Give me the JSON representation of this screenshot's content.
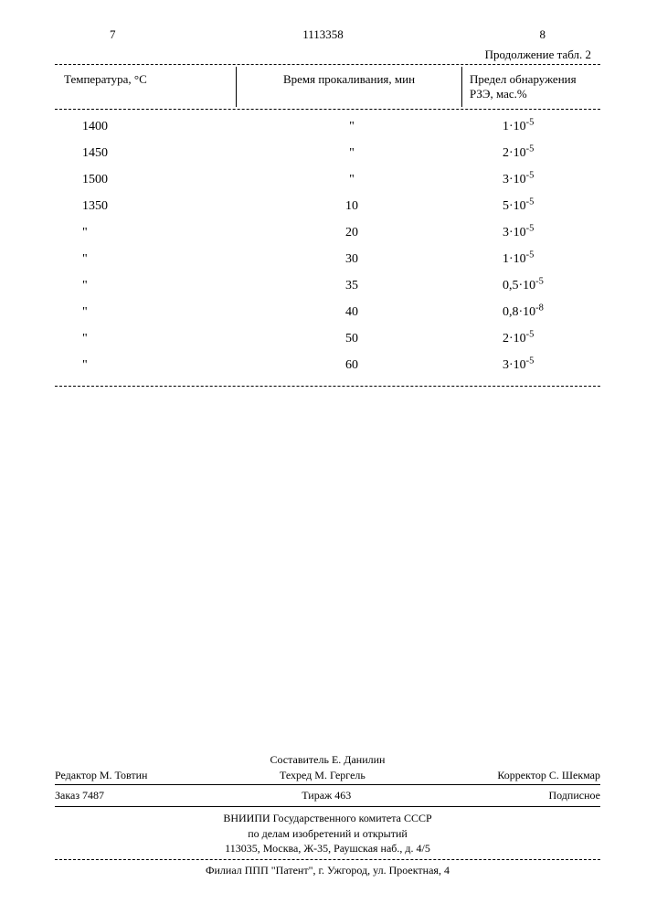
{
  "header": {
    "left_num": "7",
    "center_num": "1113358",
    "right_num": "8",
    "continuation": "Продолжение табл. 2"
  },
  "table": {
    "columns": {
      "c1": "Температура, °С",
      "c2": "Время прокаливания, мин",
      "c3": "Предел обнаружения РЗЭ, мас.%"
    },
    "rows": [
      {
        "c1": "1400",
        "c2": "\"",
        "c3_base": "1",
        "c3_exp": "-5"
      },
      {
        "c1": "1450",
        "c2": "\"",
        "c3_base": "2",
        "c3_exp": "-5"
      },
      {
        "c1": "1500",
        "c2": "\"",
        "c3_base": "3",
        "c3_exp": "-5"
      },
      {
        "c1": "1350",
        "c2": "10",
        "c3_base": "5",
        "c3_exp": "-5"
      },
      {
        "c1": "\"",
        "c2": "20",
        "c3_base": "3",
        "c3_exp": "-5"
      },
      {
        "c1": "\"",
        "c2": "30",
        "c3_base": "1",
        "c3_exp": "-5"
      },
      {
        "c1": "\"",
        "c2": "35",
        "c3_base": "0,5",
        "c3_exp": "-5"
      },
      {
        "c1": "\"",
        "c2": "40",
        "c3_base": "0,8",
        "c3_exp": "-8"
      },
      {
        "c1": "\"",
        "c2": "50",
        "c3_base": "2",
        "c3_exp": "-5"
      },
      {
        "c1": "\"",
        "c2": "60",
        "c3_base": "3",
        "c3_exp": "-5"
      }
    ]
  },
  "footer": {
    "compiler": "Составитель Е. Данилин",
    "editor": "Редактор М. Товтин",
    "techred": "Техред М. Гергель",
    "corrector": "Корректор С. Шекмар",
    "order": "Заказ 7487",
    "tirage": "Тираж 463",
    "subscribe": "Подписное",
    "org1": "ВНИИПИ Государственного комитета СССР",
    "org2": "по делам изобретений и открытий",
    "org3": "113035, Москва, Ж-35, Раушская наб., д. 4/5",
    "filial": "Филиал ППП \"Патент\", г. Ужгород, ул. Проектная, 4"
  }
}
